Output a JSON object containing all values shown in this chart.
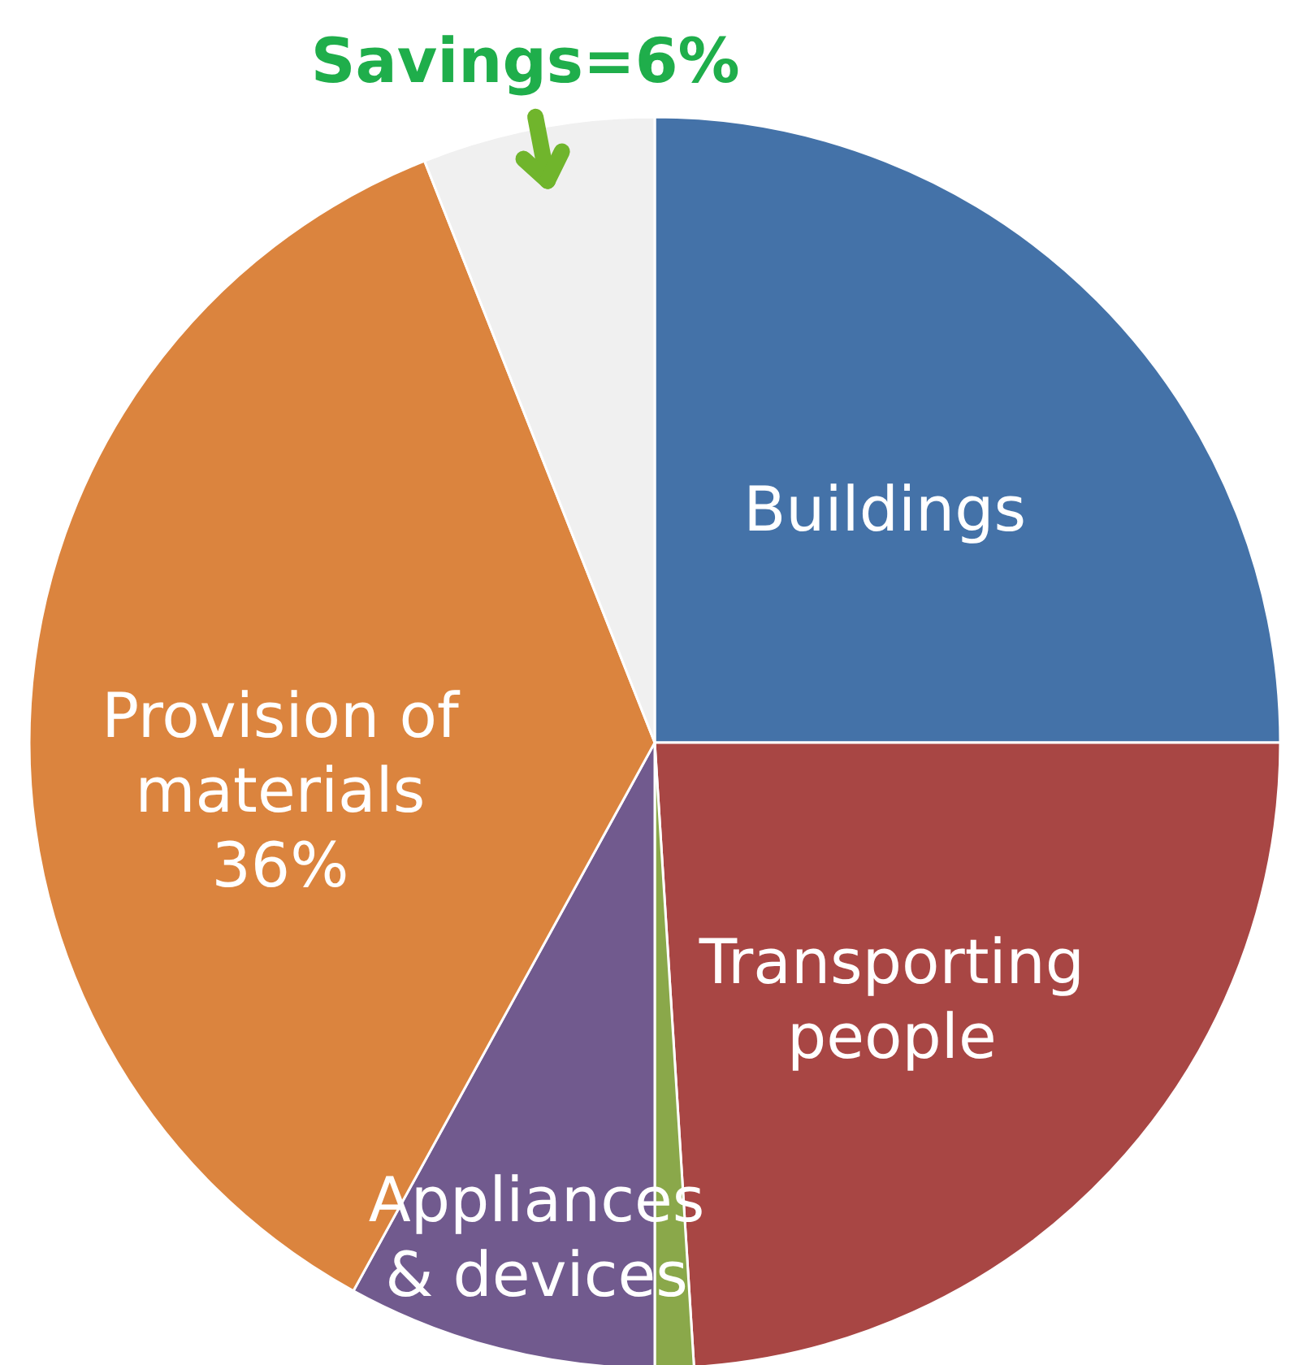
{
  "chart_data": {
    "type": "pie",
    "categories": [
      "Buildings",
      "Transporting people",
      null,
      "Appliances & devices",
      "Provision of materials",
      null
    ],
    "values": [
      25,
      24,
      1,
      8,
      36,
      6
    ],
    "colors": [
      "#4472a8",
      "#a84644",
      "#8aa84a",
      "#715a8e",
      "#db843e",
      "#f0f0f0"
    ],
    "value_labels": [
      null,
      null,
      null,
      null,
      "36%",
      null
    ],
    "annotations": [
      "Savings=6%"
    ]
  }
}
